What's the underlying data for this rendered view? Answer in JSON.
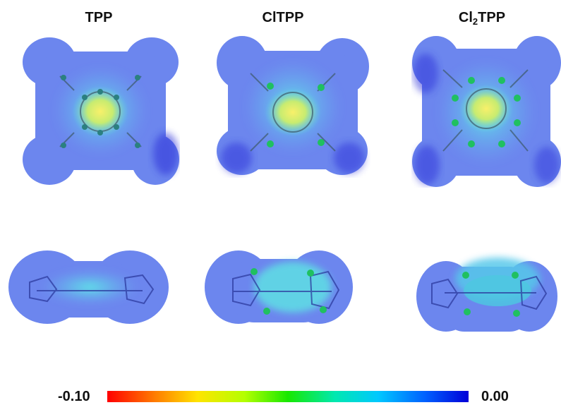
{
  "labels": {
    "tpp": "TPP",
    "cltpp": "ClTPP",
    "cl2tpp_prefix": "Cl",
    "cl2tpp_sub": "2",
    "cl2tpp_suffix": "TPP"
  },
  "color_scale": {
    "min_label": "-0.10",
    "max_label": "0.00",
    "colors": [
      "#ff0000",
      "#ff7a00",
      "#ffe400",
      "#b4ff00",
      "#18e800",
      "#00e8b0",
      "#00c8ff",
      "#0060ff",
      "#0000d8"
    ]
  }
}
